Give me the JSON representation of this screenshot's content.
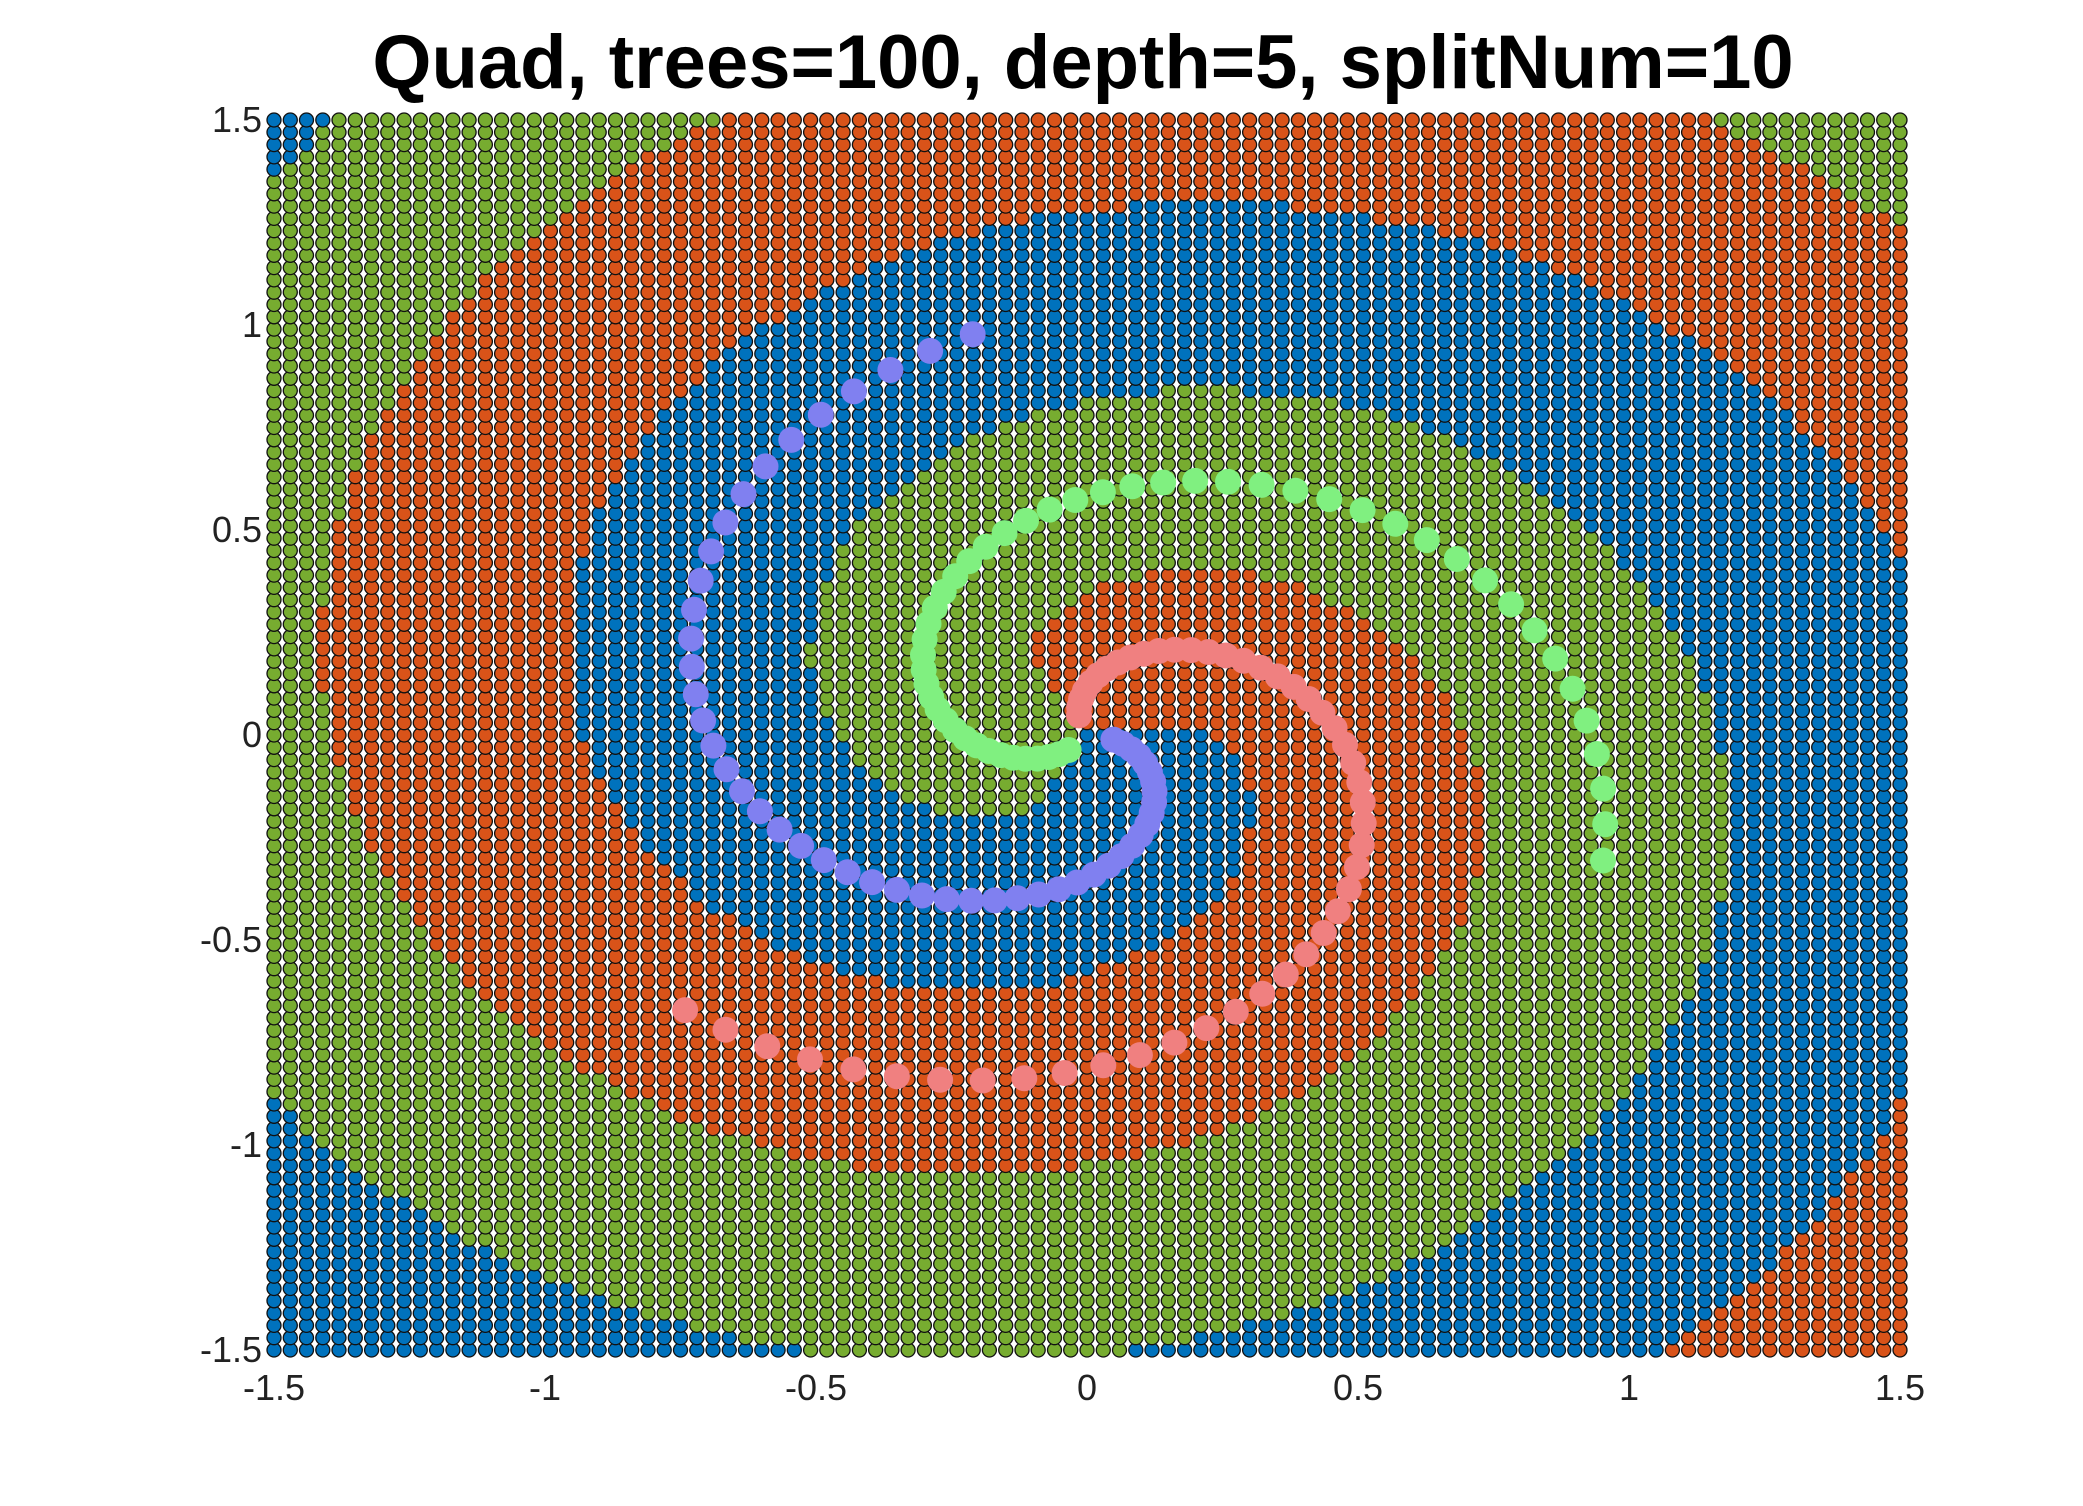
{
  "chart_data": {
    "type": "scatter",
    "title": "Quad, trees=100, depth=5, splitNum=10",
    "xlabel": "",
    "ylabel": "",
    "xlim": [
      -1.5,
      1.5
    ],
    "ylim": [
      -1.5,
      1.5
    ],
    "xticks": [
      -1.5,
      -1,
      -0.5,
      0,
      0.5,
      1,
      1.5
    ],
    "yticks": [
      -1.5,
      -1,
      -0.5,
      0,
      0.5,
      1,
      1.5
    ],
    "xtick_labels": [
      "-1.5",
      "-1",
      "-0.5",
      "0",
      "0.5",
      "1",
      "1.5"
    ],
    "ytick_labels": [
      "-1.5",
      "-1",
      "-0.5",
      "0",
      "0.5",
      "1",
      "1.5"
    ],
    "grid": false,
    "legend": "none",
    "background_classes": [
      {
        "class": 1,
        "color": "#0072BD"
      },
      {
        "class": 2,
        "color": "#D95319"
      },
      {
        "class": 3,
        "color": "#77AC30"
      }
    ],
    "training_series": [
      {
        "class": 1,
        "color": "#8080F0",
        "spiral_phase": 0
      },
      {
        "class": 2,
        "color": "#F08080",
        "spiral_phase": 2.094
      },
      {
        "class": 3,
        "color": "#80F080",
        "spiral_phase": 4.189
      }
    ],
    "spiral_points_per_class": 50
  }
}
